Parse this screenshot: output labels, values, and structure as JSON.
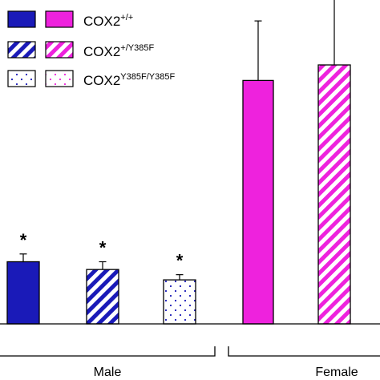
{
  "chart_data": {
    "type": "bar",
    "groups": [
      {
        "label": "Male",
        "categories": [
          "COX2+/+",
          "COX2+/Y385F",
          "COX2Y385F/Y385F"
        ]
      },
      {
        "label": "Female",
        "categories": [
          "COX2+/+",
          "COX2+/Y385F"
        ]
      }
    ],
    "x": [
      "Male COX2+/+",
      "Male COX2+/Y385F",
      "Male COX2Y385F/Y385F",
      "Female COX2+/+",
      "Female COX2+/Y385F"
    ],
    "values": [
      0.24,
      0.21,
      0.17,
      0.94,
      1.0
    ],
    "error_upper": [
      0.27,
      0.24,
      0.19,
      1.17,
      1.27
    ],
    "significance": [
      "*",
      "*",
      "*",
      "",
      ""
    ],
    "legend": [
      {
        "base": "COX2",
        "sup": "+/+",
        "pattern": "solid"
      },
      {
        "base": "COX2",
        "sup": "+/Y385F",
        "pattern": "striped"
      },
      {
        "base": "COX2",
        "sup": "Y385F/Y385F",
        "pattern": "dotted"
      }
    ],
    "legend_placement": "top-left",
    "colors": {
      "male": "#1a1ab8",
      "female": "#ee22dd"
    },
    "grid": false
  }
}
